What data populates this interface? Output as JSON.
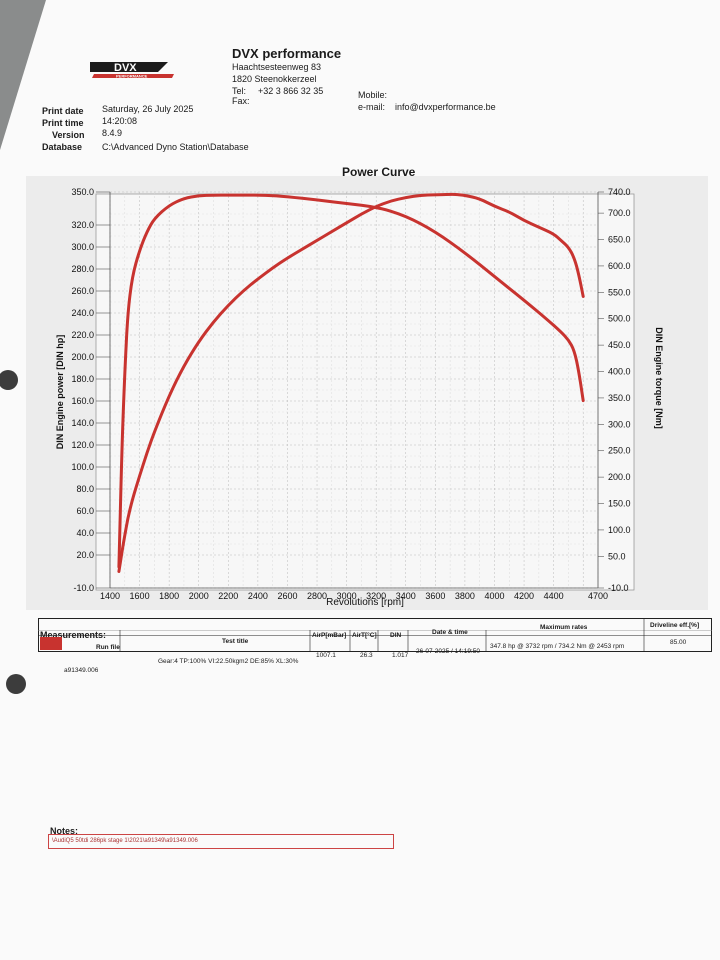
{
  "header": {
    "logo_text": "DVX",
    "logo_sub": "PERFORMANCE",
    "company": "DVX performance",
    "street": "Haachtsesteenweg 83",
    "city": "1820 Steenokkerzeel",
    "tel_label": "Tel:",
    "tel": "+32 3 866 32 35",
    "fax_label": "Fax:",
    "mobile_label": "Mobile:",
    "email_label": "e-mail:",
    "email": "info@dvxperformance.be"
  },
  "meta": {
    "print_date_label": "Print date",
    "print_date": "Saturday, 26 July 2025",
    "print_time_label": "Print time",
    "print_time": "14:20:08",
    "version_label": "Version",
    "version": "8.4.9",
    "database_label": "Database",
    "database": "C:\\Advanced Dyno Station\\Database"
  },
  "chart_data": {
    "type": "line",
    "title": "Power Curve",
    "xlabel": "Revolutions [rpm]",
    "ylabel_left": "DIN Engine power [DIN hp]",
    "ylabel_right": "DIN Engine torque [Nm]",
    "xlim": [
      1400,
      4700
    ],
    "ylim_left": [
      -10,
      350
    ],
    "ylim_right": [
      -10,
      740
    ],
    "x_ticks": [
      1400,
      1600,
      1800,
      2000,
      2200,
      2400,
      2600,
      2800,
      3000,
      3200,
      3400,
      3600,
      3800,
      4000,
      4200,
      4400,
      4700
    ],
    "y_left_ticks": [
      "350.0",
      "320.0",
      "300.0",
      "280.0",
      "260.0",
      "240.0",
      "220.0",
      "200.0",
      "180.0",
      "160.0",
      "140.0",
      "120.0",
      "100.0",
      "80.0",
      "60.0",
      "40.0",
      "20.0",
      "-10.0"
    ],
    "y_left_values": [
      350,
      320,
      300,
      280,
      260,
      240,
      220,
      200,
      180,
      160,
      140,
      120,
      100,
      80,
      60,
      40,
      20,
      -10
    ],
    "y_right_ticks": [
      "740.0",
      "700.0",
      "650.0",
      "600.0",
      "550.0",
      "500.0",
      "450.0",
      "400.0",
      "350.0",
      "300.0",
      "250.0",
      "200.0",
      "150.0",
      "100.0",
      "50.0",
      "-10.0"
    ],
    "y_right_values": [
      740,
      700,
      650,
      600,
      550,
      500,
      450,
      400,
      350,
      300,
      250,
      200,
      150,
      100,
      50,
      -10
    ],
    "grid": true,
    "series": [
      {
        "name": "DIN Engine power",
        "axis": "left",
        "color": "#c8332f",
        "x": [
          1460,
          1480,
          1500,
          1520,
          1550,
          1600,
          1650,
          1700,
          1800,
          1900,
          2000,
          2100,
          2200,
          2300,
          2400,
          2500,
          2600,
          2700,
          2800,
          2900,
          3000,
          3100,
          3200,
          3300,
          3400,
          3500,
          3600,
          3700,
          3732,
          3800,
          3900,
          4000,
          4100,
          4200,
          4300,
          4400,
          4450,
          4500,
          4540,
          4570,
          4600
        ],
        "y": [
          5,
          22,
          38,
          53,
          70,
          92,
          113,
          132,
          165,
          192,
          214,
          232,
          247,
          260,
          271,
          281,
          290,
          298,
          306,
          314,
          322,
          330,
          337,
          342,
          345,
          347,
          347.5,
          347.8,
          347.8,
          347,
          344,
          337,
          332,
          324,
          318,
          312,
          306,
          300,
          290,
          275,
          255
        ]
      },
      {
        "name": "DIN Engine torque",
        "axis": "right",
        "color": "#c8332f",
        "x": [
          1460,
          1480,
          1500,
          1520,
          1550,
          1600,
          1650,
          1700,
          1800,
          1900,
          2000,
          2100,
          2200,
          2300,
          2453,
          2600,
          2800,
          3000,
          3200,
          3400,
          3600,
          3800,
          4000,
          4200,
          4350,
          4450,
          4500,
          4540,
          4570,
          4600
        ],
        "y": [
          30,
          250,
          400,
          510,
          580,
          630,
          665,
          690,
          715,
          728,
          733,
          734,
          734.2,
          734,
          734.2,
          731,
          725,
          718,
          712,
          695,
          665,
          625,
          580,
          535,
          500,
          475,
          460,
          440,
          400,
          345
        ]
      }
    ]
  },
  "measurements": {
    "title": "Measurements:",
    "headers": {
      "run_file": "Run file",
      "test_title": "Test title",
      "air_p": "AirP[mBar]",
      "air_t": "AirT[°C]",
      "din": "DIN",
      "date_time": "Date & time",
      "max_rates": "Maximum rates",
      "driveline": "Driveline eff.[%]"
    },
    "row": {
      "run_file": "a91349.006",
      "test_title": "Gear:4 TP:100% VI:22.50kgm2 DE:85% XL:30%",
      "air_p": "1007.1",
      "air_t": "26.3",
      "din": "1.017",
      "date_time": "26-07-2025 / 14:19:50",
      "max_rates": "347.8 hp @ 3732 rpm / 734.2 Nm @ 2453 rpm",
      "driveline": "85.00"
    },
    "swatch_color": "#c8332f"
  },
  "notes": {
    "title": "Notes:",
    "text": "\\AudiQ5 50tdi 286pk stage 1\\2021\\a91349\\a91349.006"
  }
}
